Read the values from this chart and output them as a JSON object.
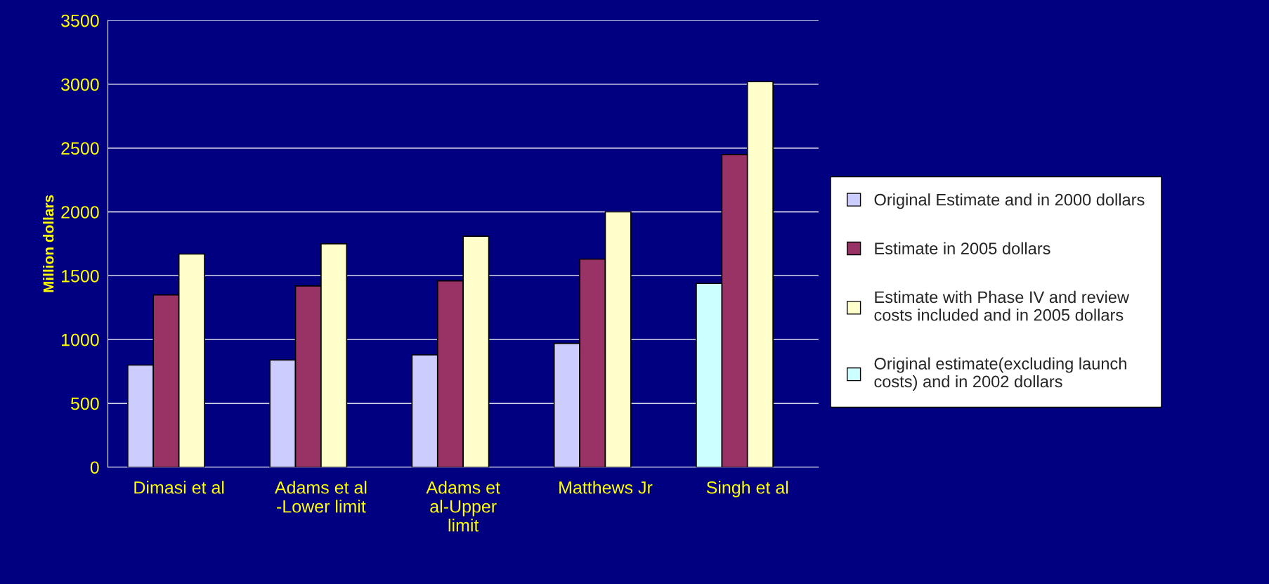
{
  "chart_data": {
    "type": "bar",
    "categories": [
      "Dimasi et al",
      "Adams et al -Lower limit",
      "Adams et al-Upper limit",
      "Matthews Jr",
      "Singh et al"
    ],
    "series": [
      {
        "name": "Original Estimate and in 2000 dollars",
        "color": "#ccccff",
        "values": [
          800,
          840,
          880,
          970,
          null
        ]
      },
      {
        "name": "Estimate in 2005 dollars",
        "color": "#993366",
        "values": [
          1350,
          1420,
          1460,
          1630,
          2450
        ]
      },
      {
        "name": "Estimate with Phase IV and review costs included and in 2005 dollars",
        "color": "#ffffcc",
        "values": [
          1670,
          1750,
          1810,
          2000,
          3020
        ]
      },
      {
        "name": "Original estimate(excluding launch costs) and in 2002 dollars",
        "color": "#ccffff",
        "values": [
          null,
          null,
          null,
          null,
          1440
        ]
      }
    ],
    "ylabel": "Million dollars",
    "ylim": [
      0,
      3500
    ],
    "yticks": [
      0,
      500,
      1000,
      1500,
      2000,
      2500,
      3000,
      3500
    ],
    "grid": "y",
    "legend": "right"
  }
}
